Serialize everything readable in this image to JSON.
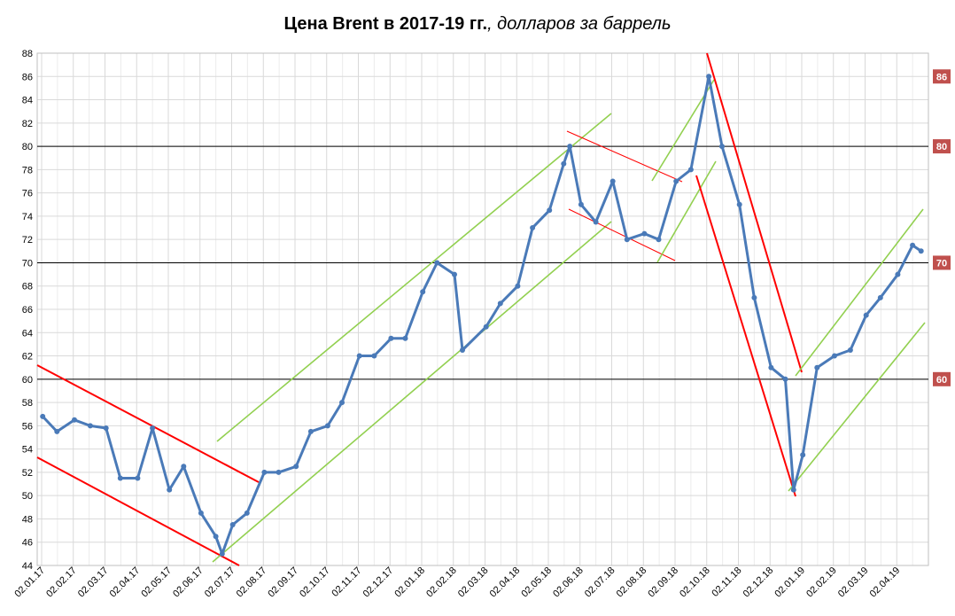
{
  "title": {
    "bold": "Цена Brent в 2017-19 гг.",
    "italic": ", долларов за баррель"
  },
  "colors": {
    "line": "#4a7ab8",
    "grid": "#d9d9d9",
    "ref": "#000000",
    "red": "#ff0000",
    "green": "#92d050",
    "badge": "#c0504d"
  },
  "chart_data": {
    "type": "line",
    "title": "Цена Brent в 2017-19 гг., долларов за баррель",
    "ylim": [
      44,
      88
    ],
    "yticks": [
      "44",
      "46",
      "48",
      "50",
      "52",
      "54",
      "56",
      "58",
      "60",
      "62",
      "64",
      "66",
      "68",
      "70",
      "72",
      "74",
      "76",
      "78",
      "80",
      "82",
      "84",
      "86",
      "88"
    ],
    "xticks": [
      "02.01.17",
      "02.02.17",
      "02.03.17",
      "02.04.17",
      "02.05.17",
      "02.06.17",
      "02.07.17",
      "02.08.17",
      "02.09.17",
      "02.10.17",
      "02.11.17",
      "02.12.17",
      "02.01.18",
      "02.02.18",
      "02.03.18",
      "02.04.18",
      "02.05.18",
      "02.06.18",
      "02.07.18",
      "02.08.18",
      "02.09.18",
      "02.10.18",
      "02.11.18",
      "02.12.18",
      "02.01.19",
      "02.02.19",
      "02.03.19",
      "02.04.19"
    ],
    "grid": true,
    "series": [
      {
        "x": [
          "02.01.17",
          "16.01.17",
          "02.02.17",
          "16.02.17",
          "02.03.17",
          "16.03.17",
          "02.04.17",
          "16.04.17",
          "02.05.17",
          "16.05.17",
          "02.06.17",
          "16.06.17",
          "22.06.17",
          "02.07.17",
          "16.07.17",
          "02.08.17",
          "16.08.17",
          "02.09.17",
          "16.09.17",
          "02.10.17",
          "16.10.17",
          "02.11.17",
          "16.11.17",
          "02.12.17",
          "16.12.17",
          "02.01.18",
          "16.01.18",
          "02.02.18",
          "09.02.18",
          "02.03.18",
          "16.03.18",
          "02.04.18",
          "16.04.18",
          "02.05.18",
          "16.05.18",
          "22.05.18",
          "02.06.18",
          "16.06.18",
          "02.07.18",
          "16.07.18",
          "02.08.18",
          "16.08.18",
          "02.09.18",
          "16.09.18",
          "03.10.18",
          "16.10.18",
          "02.11.18",
          "16.11.18",
          "02.12.18",
          "16.12.18",
          "24.12.18",
          "02.01.19",
          "16.01.19",
          "02.02.19",
          "16.02.19",
          "02.03.19",
          "16.03.19",
          "02.04.19",
          "16.04.19",
          "24.04.19"
        ],
        "y": [
          56.8,
          55.5,
          56.5,
          56.0,
          55.8,
          51.5,
          51.5,
          55.8,
          50.5,
          52.5,
          48.5,
          46.5,
          45.0,
          47.5,
          48.5,
          52.0,
          52.0,
          52.5,
          55.5,
          56.0,
          58.0,
          62.0,
          62.0,
          63.5,
          63.5,
          67.5,
          70.0,
          69.0,
          62.5,
          64.5,
          66.5,
          68.0,
          73.0,
          74.5,
          78.5,
          80.0,
          75.0,
          73.5,
          77.0,
          72.0,
          72.5,
          72.0,
          77.0,
          78.0,
          86.0,
          80.0,
          75.0,
          67.0,
          61.0,
          60.0,
          50.5,
          53.5,
          61.0,
          62.0,
          62.5,
          65.5,
          67.0,
          69.0,
          71.5,
          71.0
        ]
      }
    ],
    "annotations": [
      "86",
      "80",
      "70",
      "60"
    ]
  }
}
